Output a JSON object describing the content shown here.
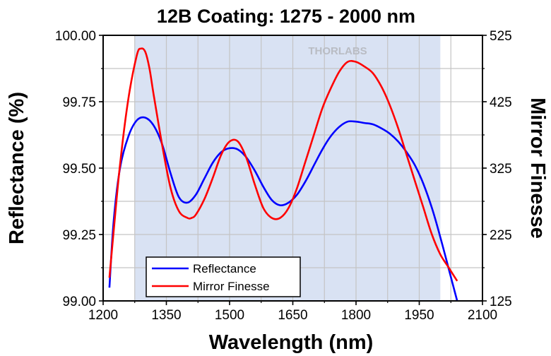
{
  "chart_data": {
    "type": "line",
    "title": "12B Coating: 1275 - 2000 nm",
    "xlabel": "Wavelength (nm)",
    "ylabel": "Reflectance (%)",
    "y2label": "Mirror Finesse",
    "xlim": [
      1200,
      2100
    ],
    "ylim": [
      99.0,
      100.0
    ],
    "y2lim": [
      125,
      525
    ],
    "xticks": [
      "1200",
      "1350",
      "1500",
      "1650",
      "1800",
      "1950",
      "2100"
    ],
    "yticks": [
      "99.00",
      "99.25",
      "99.50",
      "99.75",
      "100.00"
    ],
    "y2ticks": [
      "125",
      "225",
      "325",
      "425",
      "525"
    ],
    "highlight_band": [
      1275,
      2000
    ],
    "highlight_color": "#d9e2f3",
    "grid": true,
    "watermark": "THORLABS",
    "legend_position": "bottom-left",
    "series": [
      {
        "name": "Reflectance",
        "axis": "left",
        "color": "#0000ff",
        "x": [
          1215,
          1225,
          1240,
          1260,
          1280,
          1300,
          1320,
          1340,
          1360,
          1380,
          1400,
          1420,
          1440,
          1460,
          1480,
          1500,
          1520,
          1540,
          1560,
          1580,
          1600,
          1620,
          1640,
          1660,
          1680,
          1700,
          1720,
          1740,
          1760,
          1780,
          1800,
          1820,
          1840,
          1860,
          1880,
          1900,
          1920,
          1940,
          1960,
          1980,
          2000,
          2020,
          2040
        ],
        "y": [
          99.05,
          99.3,
          99.5,
          99.62,
          99.68,
          99.69,
          99.66,
          99.59,
          99.48,
          99.39,
          99.37,
          99.4,
          99.46,
          99.52,
          99.56,
          99.575,
          99.57,
          99.54,
          99.49,
          99.43,
          99.38,
          99.36,
          99.37,
          99.4,
          99.45,
          99.51,
          99.57,
          99.62,
          99.655,
          99.675,
          99.675,
          99.67,
          99.665,
          99.65,
          99.63,
          99.6,
          99.56,
          99.51,
          99.44,
          99.35,
          99.24,
          99.12,
          98.99
        ]
      },
      {
        "name": "Mirror Finesse",
        "axis": "right",
        "color": "#ff0000",
        "x": [
          1215,
          1225,
          1240,
          1260,
          1280,
          1290,
          1300,
          1310,
          1320,
          1340,
          1360,
          1380,
          1400,
          1410,
          1420,
          1440,
          1460,
          1480,
          1500,
          1520,
          1540,
          1560,
          1580,
          1600,
          1620,
          1640,
          1660,
          1680,
          1700,
          1720,
          1740,
          1760,
          1780,
          1800,
          1820,
          1840,
          1860,
          1880,
          1900,
          1920,
          1940,
          1960,
          1980,
          2000,
          2020,
          2040
        ],
        "y": [
          160,
          230,
          330,
          430,
          495,
          505,
          500,
          475,
          435,
          360,
          295,
          260,
          250,
          250,
          255,
          278,
          310,
          345,
          365,
          365,
          340,
          300,
          265,
          250,
          250,
          265,
          295,
          335,
          375,
          415,
          445,
          470,
          485,
          485,
          478,
          468,
          448,
          420,
          385,
          345,
          305,
          265,
          225,
          195,
          175,
          155
        ]
      }
    ]
  }
}
